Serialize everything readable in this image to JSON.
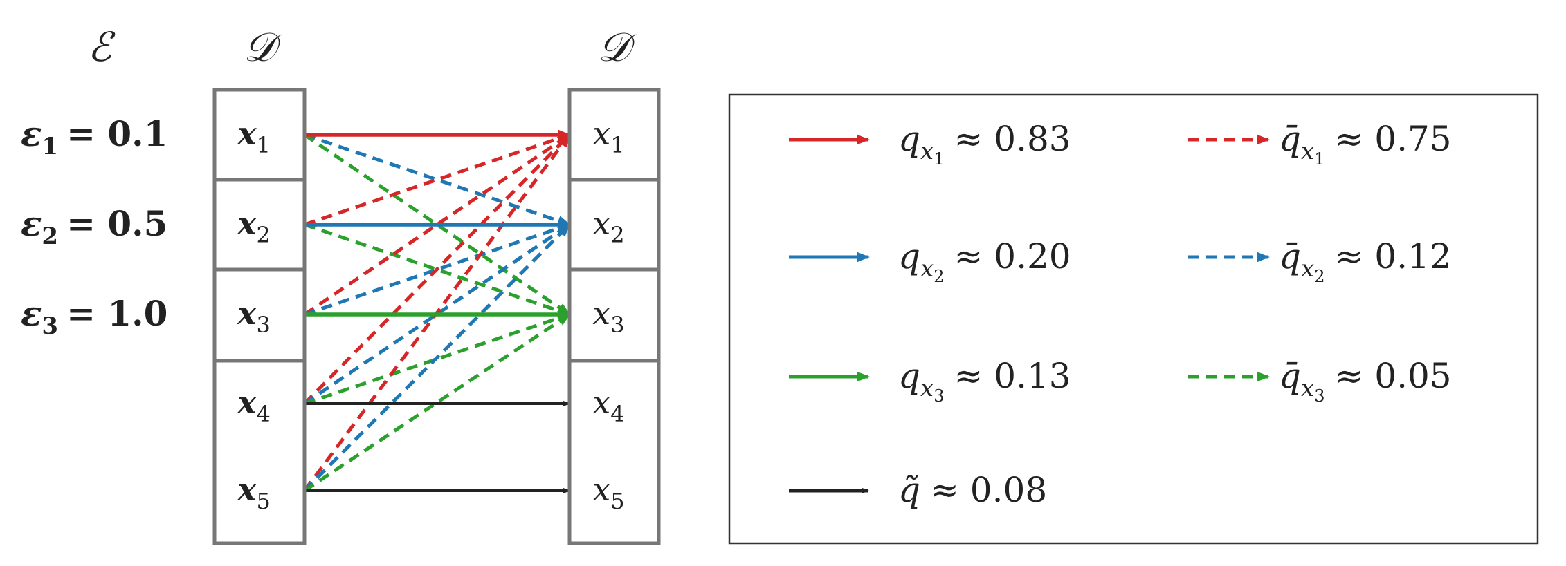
{
  "headers": {
    "epsilon_set": "ℰ",
    "left_dataset": "𝒟",
    "right_dataset": "𝒟"
  },
  "epsilons": [
    {
      "symbol": "ε",
      "index": "1",
      "value": "= 0.1"
    },
    {
      "symbol": "ε",
      "index": "2",
      "value": "= 0.5"
    },
    {
      "symbol": "ε",
      "index": "3",
      "value": "= 1.0"
    }
  ],
  "nodes": [
    {
      "symbol": "x",
      "index": "1"
    },
    {
      "symbol": "x",
      "index": "2"
    },
    {
      "symbol": "x",
      "index": "3"
    },
    {
      "symbol": "x",
      "index": "4"
    },
    {
      "symbol": "x",
      "index": "5"
    }
  ],
  "colors": {
    "x1": "#d62728",
    "x2": "#1f77b4",
    "x3": "#2ca02c",
    "other": "#222222",
    "box": "#777777"
  },
  "edges": {
    "solid": [
      [
        1,
        1,
        "x1"
      ],
      [
        2,
        2,
        "x2"
      ],
      [
        3,
        3,
        "x3"
      ],
      [
        4,
        4,
        "other"
      ],
      [
        5,
        5,
        "other"
      ]
    ],
    "dashed": [
      [
        1,
        2,
        "x2"
      ],
      [
        1,
        3,
        "x3"
      ],
      [
        2,
        1,
        "x1"
      ],
      [
        2,
        3,
        "x3"
      ],
      [
        3,
        1,
        "x1"
      ],
      [
        3,
        2,
        "x2"
      ],
      [
        4,
        1,
        "x1"
      ],
      [
        4,
        2,
        "x2"
      ],
      [
        4,
        3,
        "x3"
      ],
      [
        5,
        1,
        "x1"
      ],
      [
        5,
        2,
        "x2"
      ],
      [
        5,
        3,
        "x3"
      ]
    ]
  },
  "legend": [
    {
      "style": "solid",
      "color": "x1",
      "symbol": "q",
      "sub": "x",
      "subsub": "1",
      "value": "≈ 0.83"
    },
    {
      "style": "dashed",
      "color": "x1",
      "symbol": "q̄",
      "sub": "x",
      "subsub": "1",
      "value": "≈ 0.75"
    },
    {
      "style": "solid",
      "color": "x2",
      "symbol": "q",
      "sub": "x",
      "subsub": "2",
      "value": "≈ 0.20"
    },
    {
      "style": "dashed",
      "color": "x2",
      "symbol": "q̄",
      "sub": "x",
      "subsub": "2",
      "value": "≈ 0.12"
    },
    {
      "style": "solid",
      "color": "x3",
      "symbol": "q",
      "sub": "x",
      "subsub": "3",
      "value": "≈ 0.13"
    },
    {
      "style": "dashed",
      "color": "x3",
      "symbol": "q̄",
      "sub": "x",
      "subsub": "3",
      "value": "≈ 0.05"
    },
    {
      "style": "solid",
      "color": "other",
      "symbol": "q̃",
      "sub": "",
      "subsub": "",
      "value": "≈ 0.08"
    }
  ]
}
